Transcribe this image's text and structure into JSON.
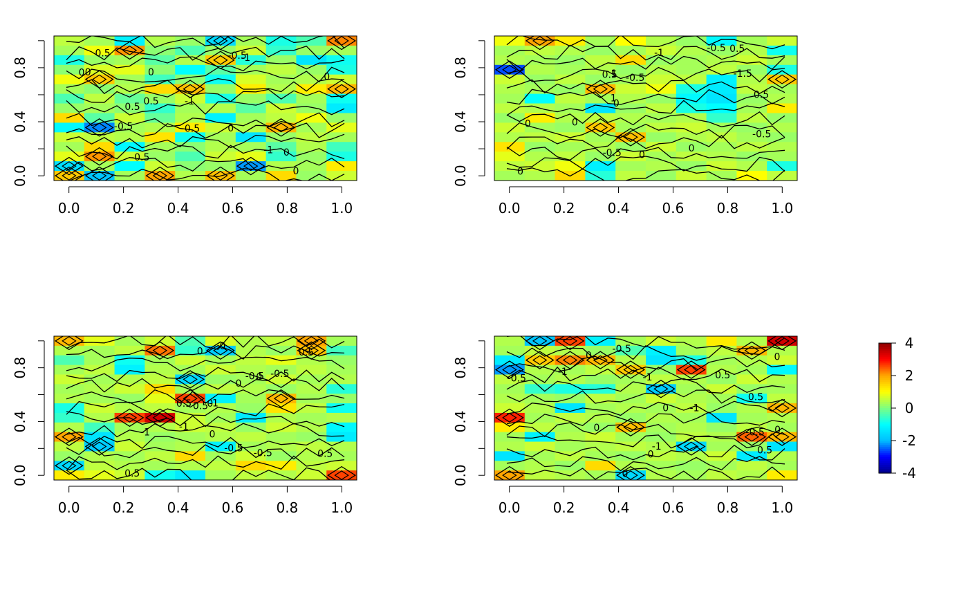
{
  "chart_data": [
    {
      "type": "heatmap",
      "panel": 1,
      "title": "",
      "xlabel": "",
      "ylabel": "",
      "xlim": [
        0,
        1
      ],
      "ylim": [
        0,
        1
      ],
      "xticks": [
        "0.0",
        "0.2",
        "0.4",
        "0.6",
        "0.8",
        "1.0"
      ],
      "yticks": [
        "0.0",
        "0.4",
        "0.8"
      ],
      "grid_cols": 10,
      "grid_rows": 15,
      "contour_labels": [
        "-1",
        "0",
        "0.5",
        "-0.5",
        "0",
        "-0.5",
        "0",
        "0.5",
        "-0.5",
        "-0.5",
        "0.5",
        "0",
        "-1",
        "0",
        "-1",
        "0",
        "0"
      ],
      "values": [
        [
          0.5,
          0.3,
          -1.2,
          0.4,
          0.2,
          -1.6,
          0.3,
          -0.8,
          -0.4,
          2.2
        ],
        [
          0.3,
          0.9,
          2.1,
          0.1,
          -0.4,
          0.2,
          0.6,
          -0.6,
          0.2,
          0.3
        ],
        [
          -0.8,
          0.2,
          0.3,
          -0.3,
          0.4,
          1.6,
          -0.7,
          0.2,
          -1.4,
          -0.9
        ],
        [
          0.1,
          0.7,
          0.8,
          0.1,
          -1.0,
          -0.3,
          0.3,
          0.5,
          0.2,
          -0.8
        ],
        [
          0.9,
          1.6,
          0.3,
          -0.5,
          0.1,
          -0.9,
          0.7,
          0.3,
          0.4,
          0.6
        ],
        [
          0.3,
          0.1,
          0.4,
          1.4,
          1.7,
          0.2,
          1.2,
          0.4,
          1.2,
          1.8
        ],
        [
          -0.4,
          0.5,
          -0.2,
          0.2,
          0.6,
          -0.8,
          0.2,
          -0.4,
          0.3,
          -0.9
        ],
        [
          0.2,
          0.3,
          0.1,
          -0.6,
          0.3,
          0.4,
          -0.3,
          0.6,
          0.2,
          -1.3
        ],
        [
          1.4,
          -0.3,
          0.6,
          -0.2,
          0.4,
          -1.2,
          0.3,
          0.5,
          0.9,
          0.2
        ],
        [
          -1.1,
          -2.3,
          0.3,
          0.4,
          1.2,
          0.6,
          0.4,
          1.8,
          0.3,
          0.8
        ],
        [
          0.6,
          0.5,
          0.4,
          1.3,
          -0.9,
          0.3,
          -1.4,
          0.2,
          0.5,
          0.3
        ],
        [
          0.3,
          1.4,
          -1.1,
          0.3,
          0.1,
          0.4,
          0.3,
          -0.3,
          0.4,
          -0.5
        ],
        [
          0.8,
          2.1,
          0.6,
          0.2,
          -0.4,
          0.6,
          0.8,
          -0.6,
          0.2,
          -0.8
        ],
        [
          -1.5,
          0.3,
          -1.0,
          0.6,
          0.1,
          0.2,
          -2.2,
          0.4,
          0.3,
          1.2
        ],
        [
          1.6,
          -1.9,
          0.3,
          2.0,
          0.4,
          1.7,
          0.3,
          1.4,
          0.2,
          0.6
        ]
      ]
    },
    {
      "type": "heatmap",
      "panel": 2,
      "title": "",
      "xlabel": "",
      "ylabel": "",
      "xlim": [
        0,
        1
      ],
      "ylim": [
        0,
        1
      ],
      "xticks": [
        "0.0",
        "0.2",
        "0.4",
        "0.6",
        "0.8",
        "1.0"
      ],
      "yticks": [
        "0.0",
        "0.4",
        "0.8"
      ],
      "grid_cols": 10,
      "grid_rows": 15,
      "contour_labels": [
        "-0.5",
        "-0.5",
        "1",
        "0",
        "-0.5",
        "-1",
        "0.5",
        "0",
        "-0.5",
        "0",
        "0.5",
        "-1.5",
        "0.5",
        "0",
        "0",
        "0",
        "1"
      ],
      "values": [
        [
          0.9,
          2.0,
          1.2,
          0.3,
          1.0,
          0.4,
          0.2,
          -1.1,
          0.3,
          0.6
        ],
        [
          0.3,
          0.5,
          0.4,
          0.2,
          0.3,
          0.6,
          0.4,
          0.2,
          0.4,
          -0.9
        ],
        [
          0.4,
          0.3,
          0.2,
          0.5,
          1.4,
          0.2,
          0.3,
          0.4,
          0.6,
          0.3
        ],
        [
          -2.6,
          0.4,
          0.3,
          0.4,
          0.2,
          0.4,
          0.3,
          0.5,
          0.2,
          -0.8
        ],
        [
          0.6,
          0.2,
          0.5,
          0.2,
          0.3,
          0.6,
          0.5,
          -1.2,
          0.4,
          1.6
        ],
        [
          0.4,
          0.3,
          0.2,
          1.8,
          0.6,
          0.9,
          -0.8,
          -1.3,
          0.5,
          0.3
        ],
        [
          0.3,
          -1.0,
          0.5,
          0.3,
          0.4,
          0.2,
          -1.1,
          -1.4,
          0.2,
          0.4
        ],
        [
          0.5,
          0.4,
          0.3,
          -1.4,
          0.2,
          0.5,
          -0.8,
          -1.0,
          0.3,
          1.2
        ],
        [
          0.2,
          1.2,
          0.4,
          0.5,
          0.4,
          0.3,
          0.4,
          -0.6,
          0.5,
          0.2
        ],
        [
          0.6,
          0.3,
          0.2,
          1.6,
          0.3,
          0.5,
          0.6,
          0.3,
          0.2,
          0.4
        ],
        [
          0.4,
          0.5,
          0.6,
          0.3,
          1.7,
          0.2,
          0.4,
          0.5,
          0.3,
          0.2
        ],
        [
          1.3,
          0.2,
          0.3,
          0.4,
          0.2,
          0.6,
          0.2,
          0.3,
          0.5,
          0.4
        ],
        [
          0.8,
          0.4,
          0.5,
          0.2,
          0.6,
          0.3,
          0.5,
          0.4,
          0.2,
          0.3
        ],
        [
          0.5,
          0.6,
          0.9,
          -1.2,
          0.3,
          0.4,
          0.2,
          0.6,
          0.4,
          -0.8
        ],
        [
          0.3,
          0.4,
          1.4,
          -0.7,
          0.5,
          0.2,
          0.6,
          0.3,
          1.0,
          0.5
        ]
      ]
    },
    {
      "type": "heatmap",
      "panel": 3,
      "title": "",
      "xlabel": "",
      "ylabel": "",
      "xlim": [
        0,
        1
      ],
      "ylim": [
        0,
        1
      ],
      "xticks": [
        "0.0",
        "0.2",
        "0.4",
        "0.6",
        "0.8",
        "1.0"
      ],
      "yticks": [
        "0.0",
        "0.4",
        "0.8"
      ],
      "grid_cols": 10,
      "grid_rows": 15,
      "contour_labels": [
        "0.5",
        "0",
        "-1",
        "-1",
        "0.5",
        "0",
        "-0.5",
        "0.5",
        "-1",
        "-0.5",
        "0",
        "-0.5",
        "0.5",
        "0",
        "-0.5",
        "0.5",
        "0",
        "0"
      ],
      "values": [
        [
          1.8,
          0.8,
          0.3,
          0.6,
          -0.4,
          0.7,
          0.4,
          0.5,
          2.0,
          0.3
        ],
        [
          0.4,
          0.3,
          0.5,
          2.3,
          -0.6,
          -1.8,
          0.4,
          0.2,
          1.7,
          -0.5
        ],
        [
          -0.4,
          0.3,
          -0.9,
          0.3,
          0.6,
          0.3,
          0.5,
          0.8,
          0.4,
          0.2
        ],
        [
          0.3,
          0.5,
          -1.2,
          0.4,
          0.3,
          0.6,
          0.4,
          0.3,
          0.5,
          0.3
        ],
        [
          0.6,
          0.3,
          0.4,
          0.5,
          -1.6,
          0.2,
          0.3,
          0.6,
          0.3,
          0.4
        ],
        [
          0.3,
          0.4,
          0.6,
          1.4,
          0.3,
          0.5,
          0.4,
          0.2,
          0.4,
          -0.7
        ],
        [
          0.4,
          0.3,
          0.2,
          0.8,
          2.6,
          -1.2,
          0.3,
          1.8,
          0.3,
          0.2
        ],
        [
          -0.8,
          0.6,
          0.4,
          0.5,
          0.3,
          0.4,
          0.2,
          1.3,
          0.5,
          -0.9
        ],
        [
          -0.6,
          0.4,
          2.6,
          3.4,
          0.6,
          0.3,
          -1.3,
          0.4,
          0.3,
          0.4
        ],
        [
          0.4,
          -0.5,
          0.3,
          0.4,
          0.6,
          0.5,
          0.2,
          0.6,
          0.4,
          -1.1
        ],
        [
          2.0,
          -1.4,
          0.4,
          0.2,
          0.3,
          0.4,
          0.5,
          0.3,
          0.2,
          -1.3
        ],
        [
          0.5,
          -1.8,
          0.6,
          0.3,
          0.4,
          -1.2,
          0.3,
          0.4,
          0.5,
          0.4
        ],
        [
          0.2,
          0.4,
          0.3,
          0.5,
          1.4,
          0.3,
          0.6,
          0.2,
          0.4,
          0.3
        ],
        [
          -1.6,
          0.5,
          0.4,
          0.3,
          0.4,
          0.5,
          1.4,
          1.2,
          0.5,
          0.6
        ],
        [
          1.2,
          0.8,
          0.6,
          -0.9,
          -1.3,
          0.3,
          0.5,
          0.4,
          0.6,
          2.6
        ]
      ]
    },
    {
      "type": "heatmap",
      "panel": 4,
      "title": "",
      "xlabel": "",
      "ylabel": "",
      "xlim": [
        0,
        1
      ],
      "ylim": [
        0,
        1
      ],
      "xticks": [
        "0.0",
        "0.2",
        "0.4",
        "0.6",
        "0.8",
        "1.0"
      ],
      "yticks": [
        "0.0",
        "0.4",
        "0.8"
      ],
      "grid_cols": 10,
      "grid_rows": 15,
      "contour_labels": [
        "0",
        "0.5",
        "-1",
        "0",
        "0",
        "-0.5",
        "-1",
        "0",
        "-0.5",
        "0.5",
        "0",
        "-1",
        "0.5",
        "0",
        "-1",
        "0",
        "-0.5"
      ],
      "values": [
        [
          0.4,
          -1.9,
          2.6,
          -1.2,
          0.3,
          0.6,
          0.4,
          1.2,
          0.4,
          3.4
        ],
        [
          0.3,
          0.5,
          0.4,
          0.2,
          -0.4,
          -1.2,
          0.3,
          0.5,
          1.8,
          0.4
        ],
        [
          -1.3,
          1.6,
          2.2,
          1.8,
          0.4,
          -1.4,
          -0.8,
          0.3,
          0.4,
          0.6
        ],
        [
          -2.2,
          0.4,
          0.3,
          0.5,
          1.6,
          0.2,
          2.6,
          0.4,
          0.3,
          -1.1
        ],
        [
          0.5,
          0.3,
          0.4,
          0.2,
          0.3,
          0.5,
          0.4,
          0.2,
          0.6,
          0.4
        ],
        [
          0.3,
          -0.6,
          -0.8,
          -0.7,
          0.4,
          -1.8,
          0.3,
          0.6,
          0.2,
          0.3
        ],
        [
          0.4,
          0.3,
          0.2,
          0.5,
          0.3,
          0.6,
          0.4,
          0.3,
          -0.9,
          0.5
        ],
        [
          0.6,
          0.4,
          -1.4,
          0.3,
          0.4,
          0.3,
          0.5,
          0.2,
          0.4,
          1.8
        ],
        [
          2.8,
          0.3,
          0.5,
          0.4,
          0.2,
          0.4,
          0.3,
          -1.4,
          0.3,
          0.4
        ],
        [
          1.2,
          0.5,
          0.3,
          0.2,
          1.7,
          0.3,
          0.4,
          0.2,
          0.5,
          0.3
        ],
        [
          0.3,
          -1.2,
          0.4,
          0.6,
          0.3,
          0.2,
          0.5,
          0.4,
          2.4,
          1.8
        ],
        [
          0.4,
          0.6,
          0.3,
          0.4,
          0.5,
          0.4,
          -1.6,
          0.3,
          0.2,
          -1.4
        ],
        [
          -1.4,
          0.3,
          0.5,
          0.3,
          0.2,
          0.5,
          0.4,
          0.6,
          -1.3,
          0.4
        ],
        [
          0.3,
          0.4,
          0.2,
          1.4,
          0.4,
          0.3,
          0.2,
          0.3,
          0.5,
          0.3
        ],
        [
          2.0,
          0.5,
          0.4,
          0.3,
          -1.6,
          0.4,
          0.3,
          0.5,
          0.4,
          1.2
        ]
      ]
    }
  ],
  "colorbar": {
    "zlim": [
      -4,
      4
    ],
    "ticks": [
      "4",
      "2",
      "0",
      "-2",
      "-4"
    ],
    "colors": [
      "#00008b",
      "#0000ff",
      "#00bfff",
      "#00ffff",
      "#7fff7f",
      "#ffff00",
      "#ffa500",
      "#ff0000",
      "#8b0000"
    ]
  }
}
